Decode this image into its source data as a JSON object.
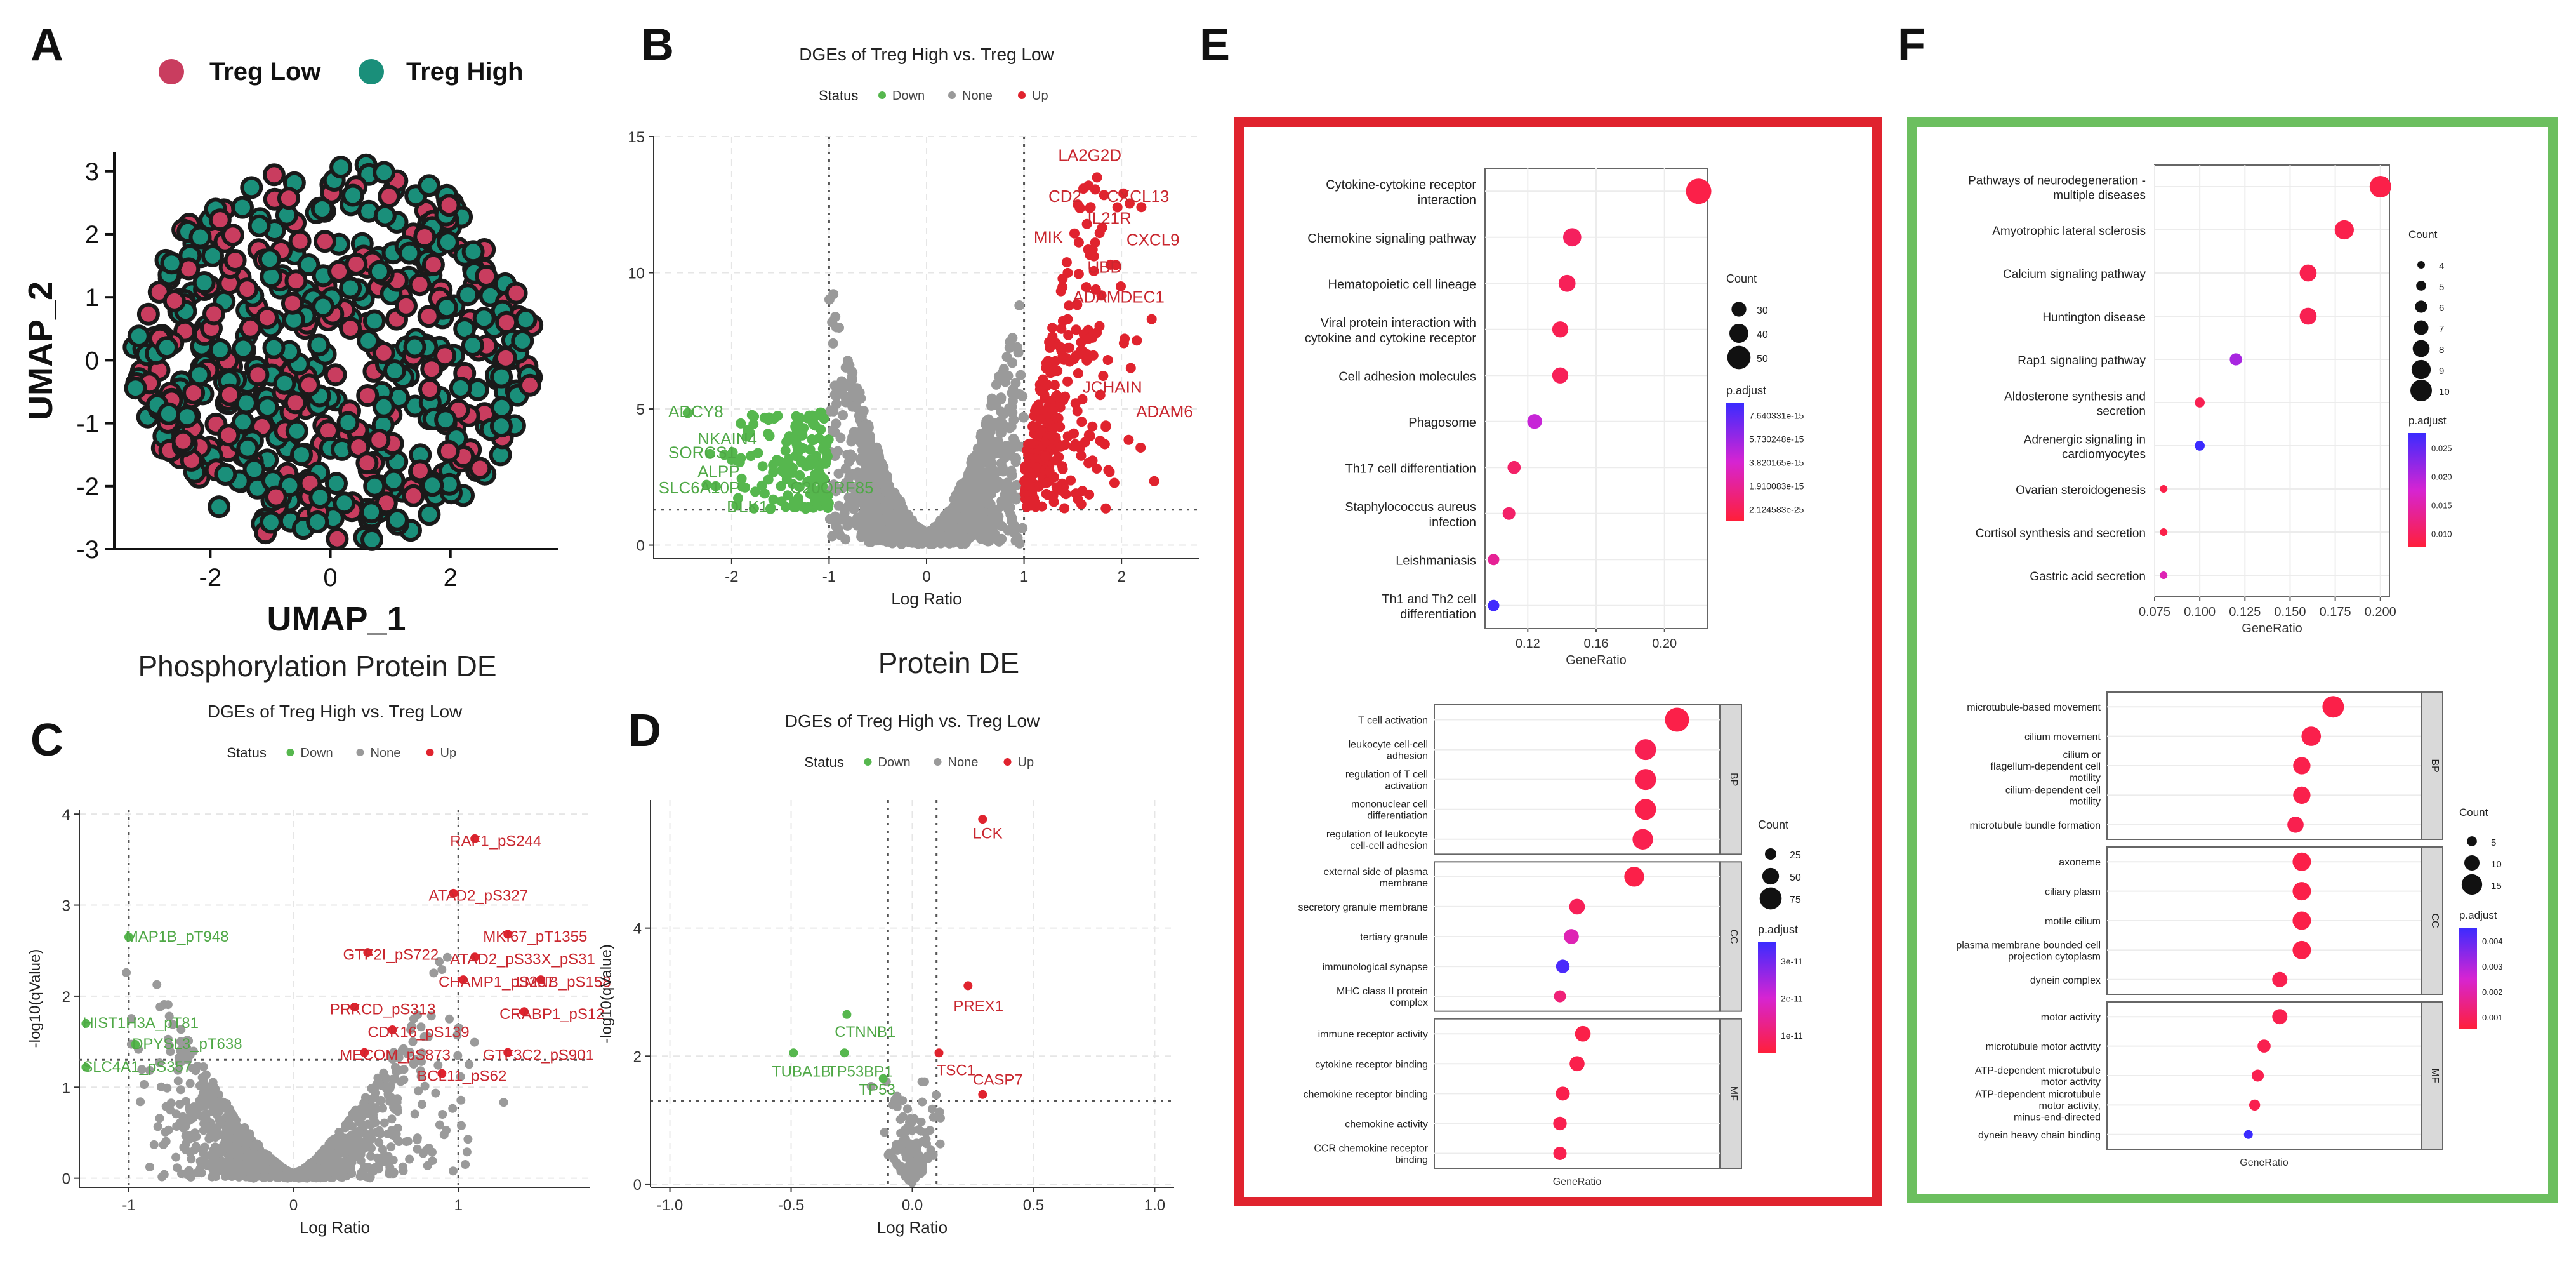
{
  "panel_labels": {
    "A": "A",
    "B": "B",
    "C": "C",
    "D": "D",
    "E": "E",
    "F": "F"
  },
  "colors": {
    "up": "#e0232e",
    "down": "#56b74e",
    "none": "#9a9a9a",
    "treg_low": "#c93d5f",
    "treg_high": "#1a8f7a",
    "frame_e": "#e0232e",
    "frame_f": "#6cbf5f",
    "padj_high": "#3b2bff",
    "padj_low": "#ff1f3a"
  },
  "chart_data": [
    {
      "id": "A",
      "type": "scatter",
      "title": "",
      "legend": [
        {
          "label": "Treg Low",
          "color": "#c93d5f"
        },
        {
          "label": "Treg High",
          "color": "#1a8f7a"
        }
      ],
      "xlabel": "UMAP_1",
      "ylabel": "UMAP_2",
      "xlim": [
        -3.6,
        3.8
      ],
      "ylim": [
        -3.0,
        3.3
      ],
      "xticks": [
        "-2",
        "0",
        "2"
      ],
      "xtick_values": [
        -2,
        0,
        2
      ],
      "yticks": [
        "-3",
        "-2",
        "-1",
        "0",
        "1",
        "2",
        "3"
      ],
      "ytick_values": [
        -3,
        -2,
        -1,
        0,
        1,
        2,
        3
      ],
      "n_points": 520,
      "description_of_cloud": "disk of radius ~3.2 centred at (0.05,0.1), random mix of two groups"
    },
    {
      "id": "B",
      "type": "scatter",
      "title": "DGEs of Treg High vs. Treg Low",
      "legend_title": "Status",
      "legend": [
        "Down",
        "None",
        "Up"
      ],
      "xlabel": "Log Ratio",
      "ylabel": "",
      "xlim": [
        -2.8,
        2.8
      ],
      "ylim": [
        -0.5,
        15
      ],
      "xticks": [
        "-2",
        "-1",
        "0",
        "1",
        "2"
      ],
      "xtick_values": [
        -2,
        -1,
        0,
        1,
        2
      ],
      "yticks": [
        "0",
        "5",
        "10",
        "15"
      ],
      "ytick_values": [
        0,
        5,
        10,
        15
      ],
      "vlines": [
        -1,
        1
      ],
      "hline": 1.3,
      "labels_up": [
        {
          "text": "LA2G2D",
          "x": 1.35,
          "y": 14.1
        },
        {
          "text": "CD2",
          "x": 1.25,
          "y": 12.6
        },
        {
          "text": "CXCL13",
          "x": 1.85,
          "y": 12.6
        },
        {
          "text": "IL21R",
          "x": 1.65,
          "y": 11.8
        },
        {
          "text": "MIK",
          "x": 1.1,
          "y": 11.1
        },
        {
          "text": "CXCL9",
          "x": 2.05,
          "y": 11.0
        },
        {
          "text": "UBD",
          "x": 1.65,
          "y": 10.0
        },
        {
          "text": "ADAMDEC1",
          "x": 1.5,
          "y": 8.9
        },
        {
          "text": "JCHAIN",
          "x": 1.6,
          "y": 5.6
        },
        {
          "text": "ADAM6",
          "x": 2.15,
          "y": 4.7
        }
      ],
      "labels_down": [
        {
          "text": "ADCY8",
          "x": -2.65,
          "y": 4.7
        },
        {
          "text": "NKAIN4",
          "x": -2.35,
          "y": 3.7
        },
        {
          "text": "SORCS1",
          "x": -2.65,
          "y": 3.2
        },
        {
          "text": "ALPP",
          "x": -2.35,
          "y": 2.5
        },
        {
          "text": "SLC6A10P",
          "x": -2.75,
          "y": 1.9
        },
        {
          "text": "C20ORF85",
          "x": -1.4,
          "y": 1.9
        },
        {
          "text": "DLK1",
          "x": -2.05,
          "y": 1.2
        }
      ],
      "n_up": 300,
      "n_down": 150,
      "n_none": 1500
    },
    {
      "id": "C",
      "type": "scatter",
      "heading": "Phosphorylation Protein DE",
      "title": "DGEs of Treg High vs. Treg Low",
      "legend_title": "Status",
      "legend": [
        "Down",
        "None",
        "Up"
      ],
      "xlabel": "Log Ratio",
      "ylabel": "-log10(qValue)",
      "xlim": [
        -1.3,
        1.8
      ],
      "ylim": [
        -0.1,
        4.05
      ],
      "xticks": [
        "-1",
        "0",
        "1"
      ],
      "xtick_values": [
        -1,
        0,
        1
      ],
      "yticks": [
        "0",
        "1",
        "2",
        "3",
        "4"
      ],
      "ytick_values": [
        0,
        1,
        2,
        3,
        4
      ],
      "vlines": [
        -1,
        1
      ],
      "hline": 1.3,
      "labels_up": [
        {
          "text": "RAF1_pS244",
          "x": 0.95,
          "y": 3.65
        },
        {
          "text": "ATAD2_pS327",
          "x": 0.82,
          "y": 3.05
        },
        {
          "text": "MKI67_pT1355",
          "x": 1.15,
          "y": 2.6
        },
        {
          "text": "GTF2I_pS722",
          "x": 0.3,
          "y": 2.4
        },
        {
          "text": "ATAD2_pS33X_pS31",
          "x": 0.95,
          "y": 2.35
        },
        {
          "text": "CHAMP1_pS287",
          "x": 0.88,
          "y": 2.1
        },
        {
          "text": "LMNB_pS158",
          "x": 1.35,
          "y": 2.1
        },
        {
          "text": "PRKCD_pS313",
          "x": 0.22,
          "y": 1.8
        },
        {
          "text": "CRABP1_pS12",
          "x": 1.25,
          "y": 1.75
        },
        {
          "text": "CDK16_pS139",
          "x": 0.45,
          "y": 1.55
        },
        {
          "text": "MECOM_pS873",
          "x": 0.28,
          "y": 1.3
        },
        {
          "text": "GTF3C2_pS901",
          "x": 1.15,
          "y": 1.3
        },
        {
          "text": "BCL11_pS62",
          "x": 0.75,
          "y": 1.07
        }
      ],
      "labels_down": [
        {
          "text": "MAP1B_pT948",
          "x": -1.02,
          "y": 2.6
        },
        {
          "text": "HIST1H3A_pT81",
          "x": -1.28,
          "y": 1.65
        },
        {
          "text": "DPYSL3_pT638",
          "x": -0.98,
          "y": 1.42
        },
        {
          "text": "SLC4A1_pS357",
          "x": -1.28,
          "y": 1.17
        }
      ],
      "n_none": 1200,
      "n_up": 30,
      "n_down": 5
    },
    {
      "id": "D",
      "type": "scatter",
      "heading": "Protein DE",
      "title": "DGEs of Treg High vs. Treg Low",
      "legend_title": "Status",
      "legend": [
        "Down",
        "None",
        "Up"
      ],
      "xlabel": "Log Ratio",
      "ylabel": "-log10(qValue)",
      "xlim": [
        -1.08,
        1.08
      ],
      "ylim": [
        -0.05,
        6.0
      ],
      "xticks": [
        "-1.0",
        "-0.5",
        "0.0",
        "0.5",
        "1.0"
      ],
      "xtick_values": [
        -1,
        -0.5,
        0,
        0.5,
        1
      ],
      "yticks": [
        "0",
        "2",
        "4"
      ],
      "ytick_values": [
        0,
        2,
        4
      ],
      "vlines": [
        -0.1,
        0.1
      ],
      "hline": 1.3,
      "labels_up": [
        {
          "text": "LCK",
          "x": 0.25,
          "y": 5.4
        },
        {
          "text": "PREX1",
          "x": 0.17,
          "y": 2.7
        },
        {
          "text": "TSC1",
          "x": 0.1,
          "y": 1.7
        },
        {
          "text": "CASP7",
          "x": 0.25,
          "y": 1.55
        }
      ],
      "labels_down": [
        {
          "text": "CTNNB1",
          "x": -0.32,
          "y": 2.3
        },
        {
          "text": "TUBA1B",
          "x": -0.58,
          "y": 1.68
        },
        {
          "text": "TP53BP1",
          "x": -0.35,
          "y": 1.68
        },
        {
          "text": "TP53",
          "x": -0.22,
          "y": 1.4
        }
      ],
      "points_up": [
        {
          "x": 0.29,
          "y": 5.7
        },
        {
          "x": 0.23,
          "y": 3.1
        },
        {
          "x": 0.11,
          "y": 2.05
        },
        {
          "x": 0.29,
          "y": 1.4
        }
      ],
      "points_down": [
        {
          "x": -0.27,
          "y": 2.65
        },
        {
          "x": -0.49,
          "y": 2.05
        },
        {
          "x": -0.28,
          "y": 2.05
        },
        {
          "x": -0.12,
          "y": 1.65
        }
      ],
      "n_none": 120
    },
    {
      "id": "E1",
      "type": "dot",
      "xlabel": "GeneRatio",
      "xlim": [
        0.095,
        0.225
      ],
      "xticks": [
        "0.12",
        "0.16",
        "0.20"
      ],
      "xtick_values": [
        0.12,
        0.16,
        0.2
      ],
      "terms": [
        {
          "label": "Cytokine-cytokine receptor interaction",
          "x": 0.22,
          "count": 55,
          "t": 0.95
        },
        {
          "label": "Chemokine signaling pathway",
          "x": 0.146,
          "count": 38,
          "t": 0.88
        },
        {
          "label": "Hematopoietic cell lineage",
          "x": 0.143,
          "count": 35,
          "t": 0.9
        },
        {
          "label": "Viral protein interaction with cytokine and cytokine receptor",
          "x": 0.139,
          "count": 33,
          "t": 0.92
        },
        {
          "label": "Cell adhesion molecules",
          "x": 0.139,
          "count": 33,
          "t": 0.9
        },
        {
          "label": "Phagosome",
          "x": 0.124,
          "count": 30,
          "t": 0.45
        },
        {
          "label": "Th17 cell differentiation",
          "x": 0.112,
          "count": 26,
          "t": 0.85
        },
        {
          "label": "Staphylococcus aureus infection",
          "x": 0.109,
          "count": 25,
          "t": 0.85
        },
        {
          "label": "Leishmaniasis",
          "x": 0.1,
          "count": 22,
          "t": 0.7
        },
        {
          "label": "Th1 and Th2 cell differentiation",
          "x": 0.1,
          "count": 22,
          "t": 0.02
        }
      ],
      "legend_count_title": "Count",
      "legend_count": [
        "30",
        "40",
        "50"
      ],
      "legend_padj_title": "p.adjust",
      "legend_padj": [
        "7.640331e-15",
        "5.730248e-15",
        "3.820165e-15",
        "1.910083e-15",
        "2.124583e-25"
      ]
    },
    {
      "id": "E2",
      "type": "dot",
      "xlabel": "GeneRatio",
      "groups": [
        {
          "name": "BP",
          "terms": [
            {
              "label": "T cell activation",
              "x": 0.85,
              "count": 85,
              "t": 0.95
            },
            {
              "label": "leukocyte cell-cell adhesion",
              "x": 0.74,
              "count": 70,
              "t": 0.92
            },
            {
              "label": "regulation of T cell activation",
              "x": 0.74,
              "count": 70,
              "t": 0.93
            },
            {
              "label": "mononuclear cell differentiation",
              "x": 0.74,
              "count": 70,
              "t": 0.94
            },
            {
              "label": "regulation of leukocyte cell-cell adhesion",
              "x": 0.73,
              "count": 68,
              "t": 0.93
            }
          ]
        },
        {
          "name": "CC",
          "terms": [
            {
              "label": "external side of plasma membrane",
              "x": 0.7,
              "count": 65,
              "t": 0.95
            },
            {
              "label": "secretory granule membrane",
              "x": 0.5,
              "count": 45,
              "t": 0.9
            },
            {
              "label": "tertiary granule",
              "x": 0.48,
              "count": 42,
              "t": 0.6
            },
            {
              "label": "immunological synapse",
              "x": 0.45,
              "count": 35,
              "t": 0.05
            },
            {
              "label": "MHC class II protein complex",
              "x": 0.44,
              "count": 28,
              "t": 0.8
            }
          ]
        },
        {
          "name": "MF",
          "terms": [
            {
              "label": "immune receptor activity",
              "x": 0.52,
              "count": 45,
              "t": 0.95
            },
            {
              "label": "cytokine receptor binding",
              "x": 0.5,
              "count": 42,
              "t": 0.94
            },
            {
              "label": "chemokine receptor binding",
              "x": 0.45,
              "count": 37,
              "t": 0.94
            },
            {
              "label": "chemokine activity",
              "x": 0.44,
              "count": 35,
              "t": 0.93
            },
            {
              "label": "CCR chemokine receptor binding",
              "x": 0.44,
              "count": 34,
              "t": 0.93
            }
          ]
        }
      ],
      "legend_count_title": "Count",
      "legend_count": [
        "25",
        "50",
        "75"
      ],
      "legend_padj_title": "p.adjust",
      "legend_padj": [
        "3e-11",
        "2e-11",
        "1e-11"
      ]
    },
    {
      "id": "F1",
      "type": "dot",
      "xlabel": "GeneRatio",
      "xlim": [
        0.075,
        0.205
      ],
      "xticks": [
        "0.075",
        "0.100",
        "0.125",
        "0.150",
        "0.175",
        "0.200"
      ],
      "xtick_values": [
        0.075,
        0.1,
        0.125,
        0.15,
        0.175,
        0.2
      ],
      "terms": [
        {
          "label": "Pathways of neurodegeneration - multiple diseases",
          "x": 0.2,
          "count": 10,
          "t": 0.95
        },
        {
          "label": "Amyotrophic lateral sclerosis",
          "x": 0.18,
          "count": 9,
          "t": 0.94
        },
        {
          "label": "Calcium signaling pathway",
          "x": 0.16,
          "count": 8,
          "t": 0.93
        },
        {
          "label": "Huntington disease",
          "x": 0.16,
          "count": 8,
          "t": 0.92
        },
        {
          "label": "Rap1 signaling pathway",
          "x": 0.12,
          "count": 6,
          "t": 0.35
        },
        {
          "label": "Aldosterone synthesis and secretion",
          "x": 0.1,
          "count": 5,
          "t": 0.92
        },
        {
          "label": "Adrenergic signaling in cardiomyocytes",
          "x": 0.1,
          "count": 5,
          "t": 0.0
        },
        {
          "label": "Ovarian steroidogenesis",
          "x": 0.08,
          "count": 4,
          "t": 0.95
        },
        {
          "label": "Cortisol synthesis and secretion",
          "x": 0.08,
          "count": 4,
          "t": 0.95
        },
        {
          "label": "Gastric acid secretion",
          "x": 0.08,
          "count": 4,
          "t": 0.6
        }
      ],
      "legend_count_title": "Count",
      "legend_count": [
        "4",
        "5",
        "6",
        "7",
        "8",
        "9",
        "10"
      ],
      "legend_padj_title": "p.adjust",
      "legend_padj": [
        "0.025",
        "0.020",
        "0.015",
        "0.010"
      ]
    },
    {
      "id": "F2",
      "type": "dot",
      "xlabel": "GeneRatio",
      "groups": [
        {
          "name": "BP",
          "terms": [
            {
              "label": "microtubule-based movement",
              "x": 0.72,
              "count": 16,
              "t": 0.95
            },
            {
              "label": "cilium movement",
              "x": 0.65,
              "count": 14,
              "t": 0.94
            },
            {
              "label": "cilium or flagellum-dependent cell motility",
              "x": 0.62,
              "count": 12,
              "t": 0.94
            },
            {
              "label": "cilium-dependent cell motility",
              "x": 0.62,
              "count": 12,
              "t": 0.94
            },
            {
              "label": "microtubule bundle formation",
              "x": 0.6,
              "count": 11,
              "t": 0.93
            }
          ]
        },
        {
          "name": "CC",
          "terms": [
            {
              "label": "axoneme",
              "x": 0.62,
              "count": 13,
              "t": 0.95
            },
            {
              "label": "ciliary plasm",
              "x": 0.62,
              "count": 13,
              "t": 0.95
            },
            {
              "label": "motile cilium",
              "x": 0.62,
              "count": 13,
              "t": 0.95
            },
            {
              "label": "plasma membrane bounded cell projection cytoplasm",
              "x": 0.62,
              "count": 13,
              "t": 0.95
            },
            {
              "label": "dynein complex",
              "x": 0.55,
              "count": 10,
              "t": 0.93
            }
          ]
        },
        {
          "name": "MF",
          "terms": [
            {
              "label": "motor activity",
              "x": 0.55,
              "count": 10,
              "t": 0.93
            },
            {
              "label": "microtubule motor activity",
              "x": 0.5,
              "count": 8,
              "t": 0.93
            },
            {
              "label": "ATP-dependent microtubule motor activity",
              "x": 0.48,
              "count": 7,
              "t": 0.93
            },
            {
              "label": "ATP-dependent microtubule motor activity, minus-end-directed",
              "x": 0.47,
              "count": 6,
              "t": 0.93
            },
            {
              "label": "dynein heavy chain binding",
              "x": 0.45,
              "count": 4,
              "t": 0.0
            }
          ]
        }
      ],
      "legend_count_title": "Count",
      "legend_count": [
        "5",
        "10",
        "15"
      ],
      "legend_padj_title": "p.adjust",
      "legend_padj": [
        "0.004",
        "0.003",
        "0.002",
        "0.001"
      ]
    }
  ]
}
